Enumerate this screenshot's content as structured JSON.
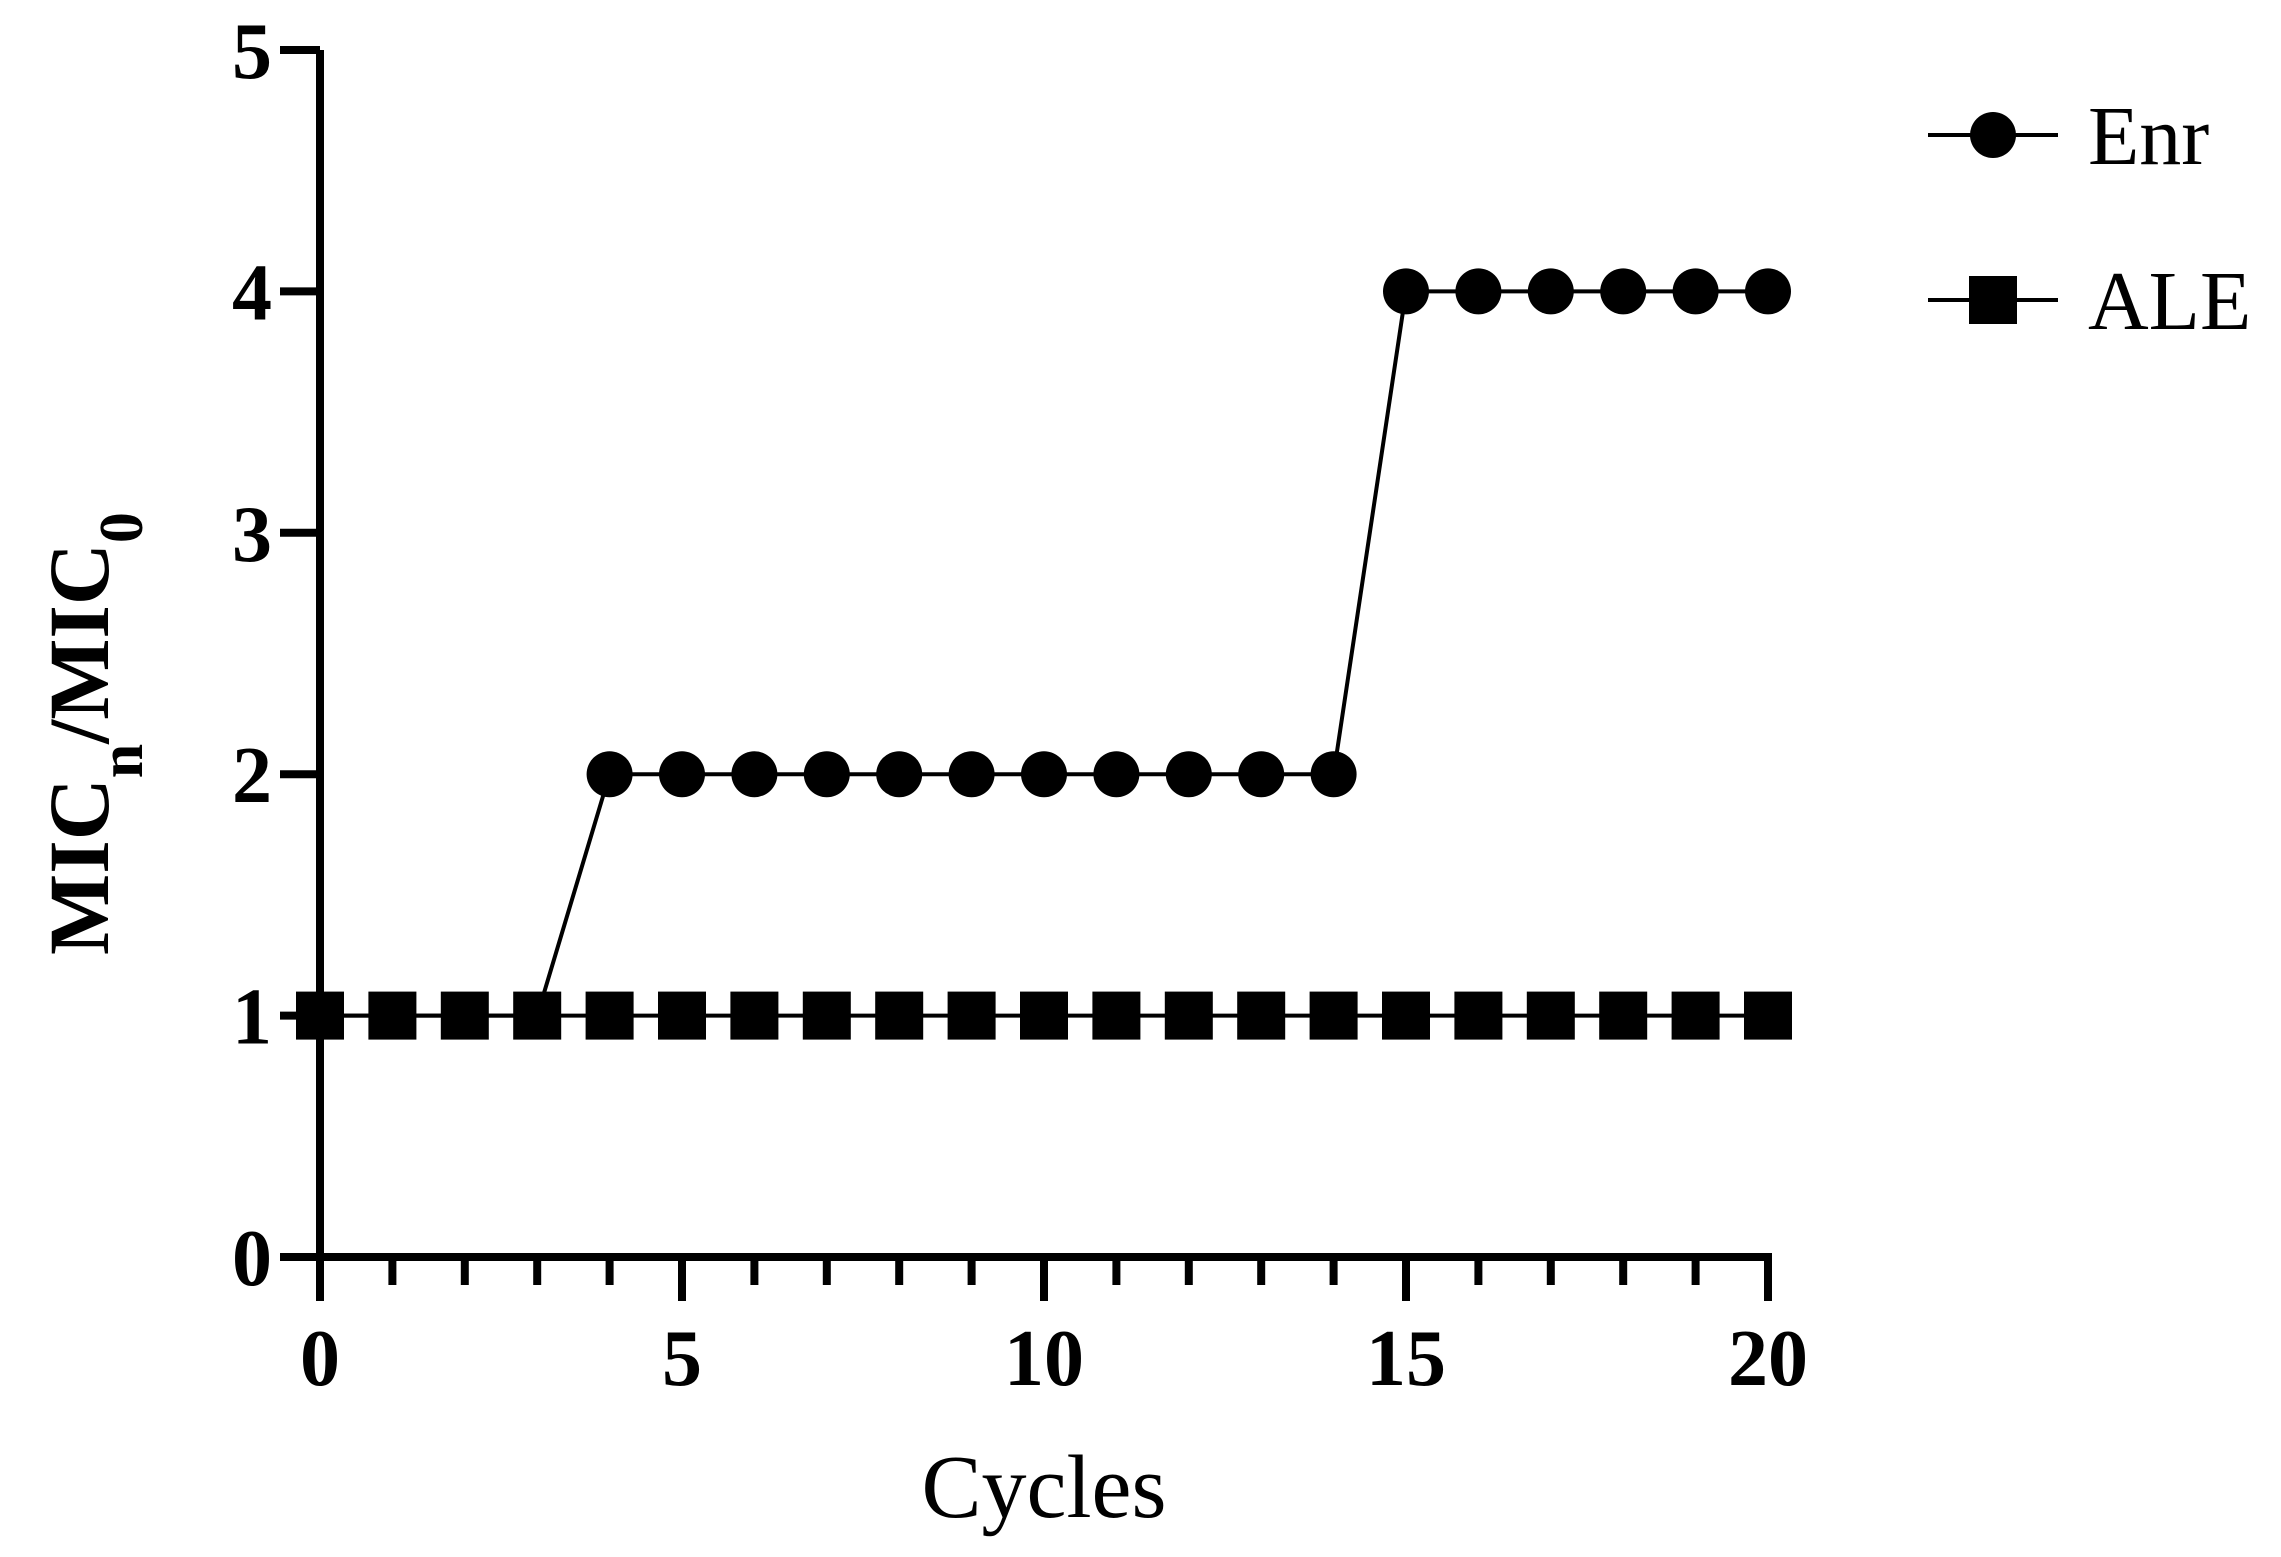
{
  "chart_data": {
    "type": "line",
    "xlabel": "Cycles",
    "ylabel": {
      "main": "MIC",
      "sub_n": "n",
      "slash": "/MIC",
      "sub_0": "0"
    },
    "xlim": [
      0,
      20
    ],
    "ylim": [
      0,
      5
    ],
    "xticks": [
      "0",
      "5",
      "10",
      "15",
      "20"
    ],
    "yticks": [
      "0",
      "1",
      "2",
      "3",
      "4",
      "5"
    ],
    "grid": false,
    "legend_position": "top-right",
    "x": [
      0,
      1,
      2,
      3,
      4,
      5,
      6,
      7,
      8,
      9,
      10,
      11,
      12,
      13,
      14,
      15,
      16,
      17,
      18,
      19,
      20
    ],
    "series": [
      {
        "name": "Enr",
        "marker": "circle",
        "color": "#000000",
        "values": [
          1,
          1,
          1,
          1,
          2,
          2,
          2,
          2,
          2,
          2,
          2,
          2,
          2,
          2,
          2,
          4,
          4,
          4,
          4,
          4,
          4
        ]
      },
      {
        "name": "ALE",
        "marker": "square",
        "color": "#000000",
        "values": [
          1,
          1,
          1,
          1,
          1,
          1,
          1,
          1,
          1,
          1,
          1,
          1,
          1,
          1,
          1,
          1,
          1,
          1,
          1,
          1,
          1
        ]
      }
    ]
  }
}
